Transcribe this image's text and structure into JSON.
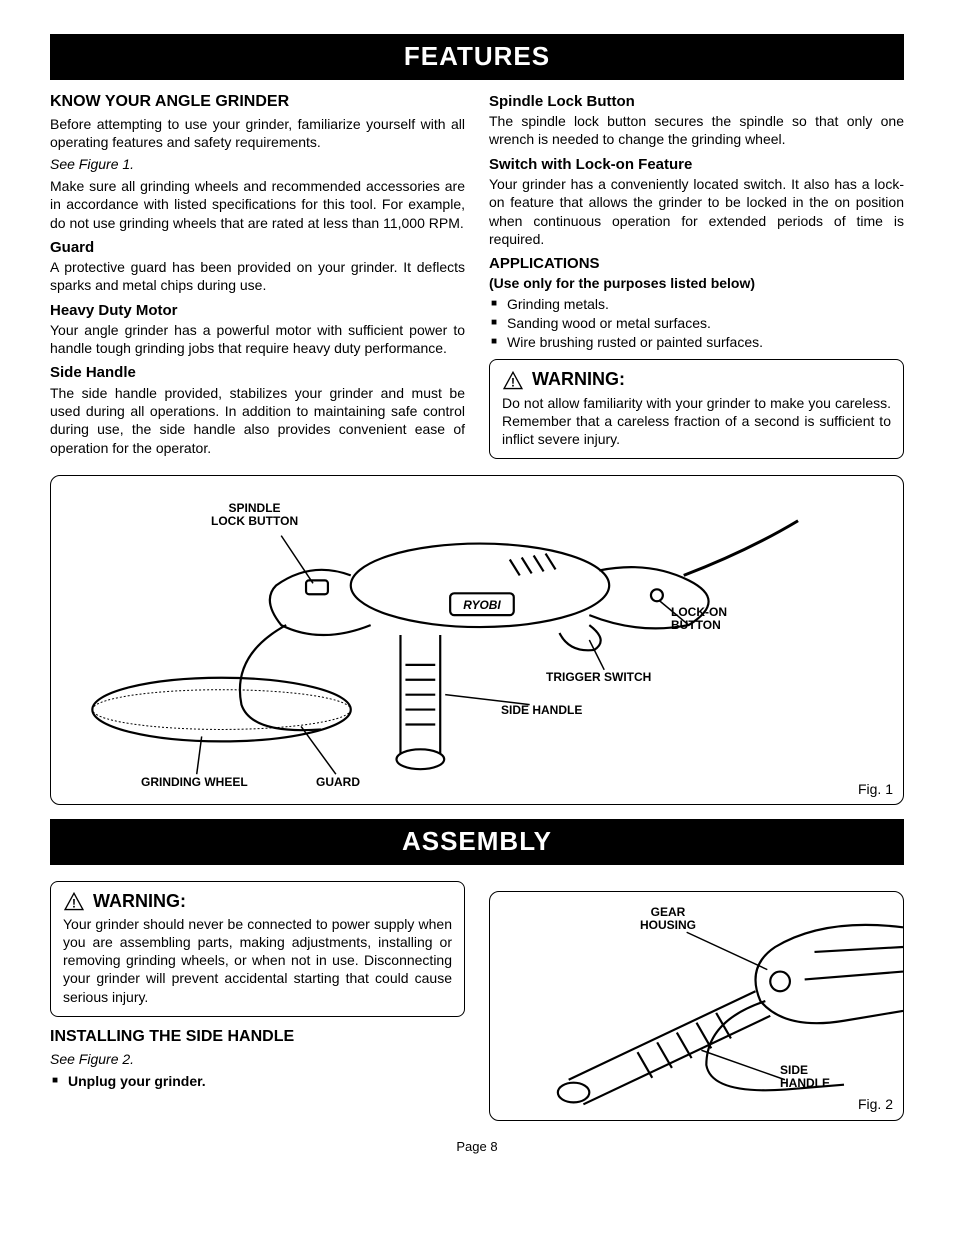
{
  "banner1": "FEATURES",
  "banner2": "ASSEMBLY",
  "left": {
    "h_know": "KNOW YOUR ANGLE GRINDER",
    "p_intro": "Before attempting to use your grinder, familiarize yourself with all operating features and safety requirements.",
    "see1": "See Figure 1.",
    "p_spec": "Make sure all grinding wheels and recommended accessories are in accordance with listed specifications for this tool. For example, do not use grinding wheels that are rated at less than 11,000 RPM.",
    "h_guard": "Guard",
    "p_guard": "A protective guard has been provided on your grinder. It deflects sparks and metal chips during use.",
    "h_motor": "Heavy Duty Motor",
    "p_motor": "Your angle grinder has a powerful motor with sufficient power to handle tough grinding jobs that require heavy duty performance.",
    "h_side": "Side Handle",
    "p_side": "The side handle provided, stabilizes your grinder and must be used during all operations. In addition to maintaining safe control during use, the side handle also provides convenient ease of operation for the operator."
  },
  "right": {
    "h_spindle": "Spindle Lock Button",
    "p_spindle": "The spindle lock button secures the spindle so that only one wrench is needed to change the grinding wheel.",
    "h_switch": "Switch with Lock-on Feature",
    "p_switch": "Your grinder has a conveniently located switch. It also has a lock-on feature that allows the grinder to be locked in the on position when continuous operation for extended periods of time is required.",
    "h_app": "APPLICATIONS",
    "sub_app": "(Use only for the purposes listed below)",
    "apps": [
      "Grinding metals.",
      "Sanding wood or metal surfaces.",
      "Wire brushing rusted or painted surfaces."
    ],
    "warn_t": "WARNING:",
    "warn_p": "Do not allow familiarity with your grinder to make you careless. Remember that a careless fraction of a second is sufficient to inflict severe injury."
  },
  "fig1": {
    "spindle": "SPINDLE\nLOCK BUTTON",
    "lockon": "LOCK-ON\nBUTTON",
    "trigger": "TRIGGER SWITCH",
    "side": "SIDE HANDLE",
    "guard": "GUARD",
    "wheel": "GRINDING WHEEL",
    "brand": "RYOBI",
    "cap": "Fig. 1"
  },
  "assembly": {
    "warn_t": "WARNING:",
    "warn_p": "Your grinder should never be connected to power supply when you are assembling parts, making adjustments, installing or removing grinding wheels, or when not in use. Disconnecting your grinder will prevent accidental starting that could cause serious injury.",
    "h_install": "INSTALLING THE SIDE HANDLE",
    "see2": "See Figure 2.",
    "step1": "Unplug your grinder."
  },
  "fig2": {
    "gear": "GEAR\nHOUSING",
    "side": "SIDE\nHANDLE",
    "cap": "Fig. 2"
  },
  "page": "Page 8"
}
